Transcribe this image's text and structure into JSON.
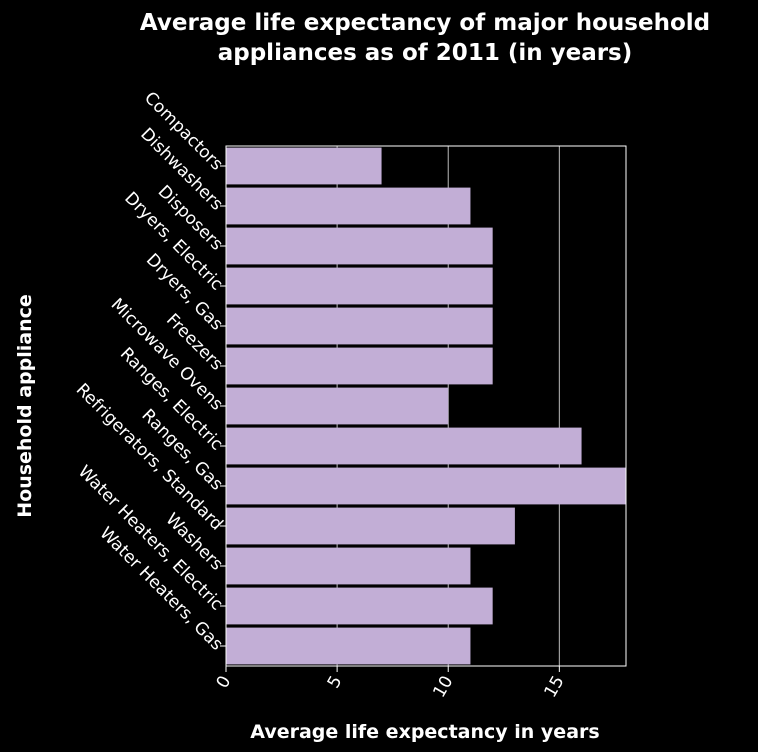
{
  "chart_data": {
    "type": "bar",
    "orientation": "horizontal",
    "title": "Average life expectancy of major household appliances as of 2011 (in years)",
    "title_lines": [
      "Average life expectancy of major household",
      "appliances as of 2011 (in years)"
    ],
    "xlabel": "Average life expectancy in years",
    "ylabel": "Household appliance",
    "categories": [
      "Compactors",
      "Dishwashers",
      "Disposers",
      "Dryers, Electric",
      "Dryers, Gas",
      "Freezers",
      "Microwave Ovens",
      "Ranges, Electric",
      "Ranges, Gas",
      "Refrigerators, Standard",
      "Washers",
      "Water Heaters, Electric",
      "Water Heaters, Gas"
    ],
    "values": [
      7,
      11,
      12,
      12,
      12,
      12,
      10,
      16,
      18,
      13,
      11,
      12,
      11
    ],
    "xlim": [
      0,
      18
    ],
    "xticks": [
      0,
      5,
      10,
      15
    ],
    "grid": true,
    "colors": {
      "bar": "#c2aed6",
      "background": "#000000",
      "grid": "#bbbbbb",
      "text": "#ffffff"
    }
  }
}
